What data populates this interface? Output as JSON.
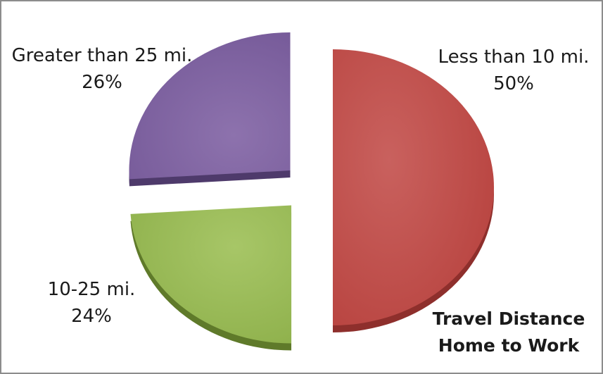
{
  "chart_data": {
    "type": "pie",
    "title_lines": [
      "Travel Distance",
      "Home to Work"
    ],
    "slices": [
      {
        "name": "Less than 10 mi.",
        "value": 50,
        "pct_label": "50%",
        "color": "#c0504d",
        "side": "#8e2f2c"
      },
      {
        "name": "10-25 mi.",
        "value": 24,
        "pct_label": "24%",
        "color": "#9bbb59",
        "side": "#5f7a2a"
      },
      {
        "name": "Greater than 25 mi.",
        "value": 26,
        "pct_label": "26%",
        "color": "#8064a2",
        "side": "#4e3a6b"
      }
    ],
    "exploded": true,
    "legend": "none"
  }
}
